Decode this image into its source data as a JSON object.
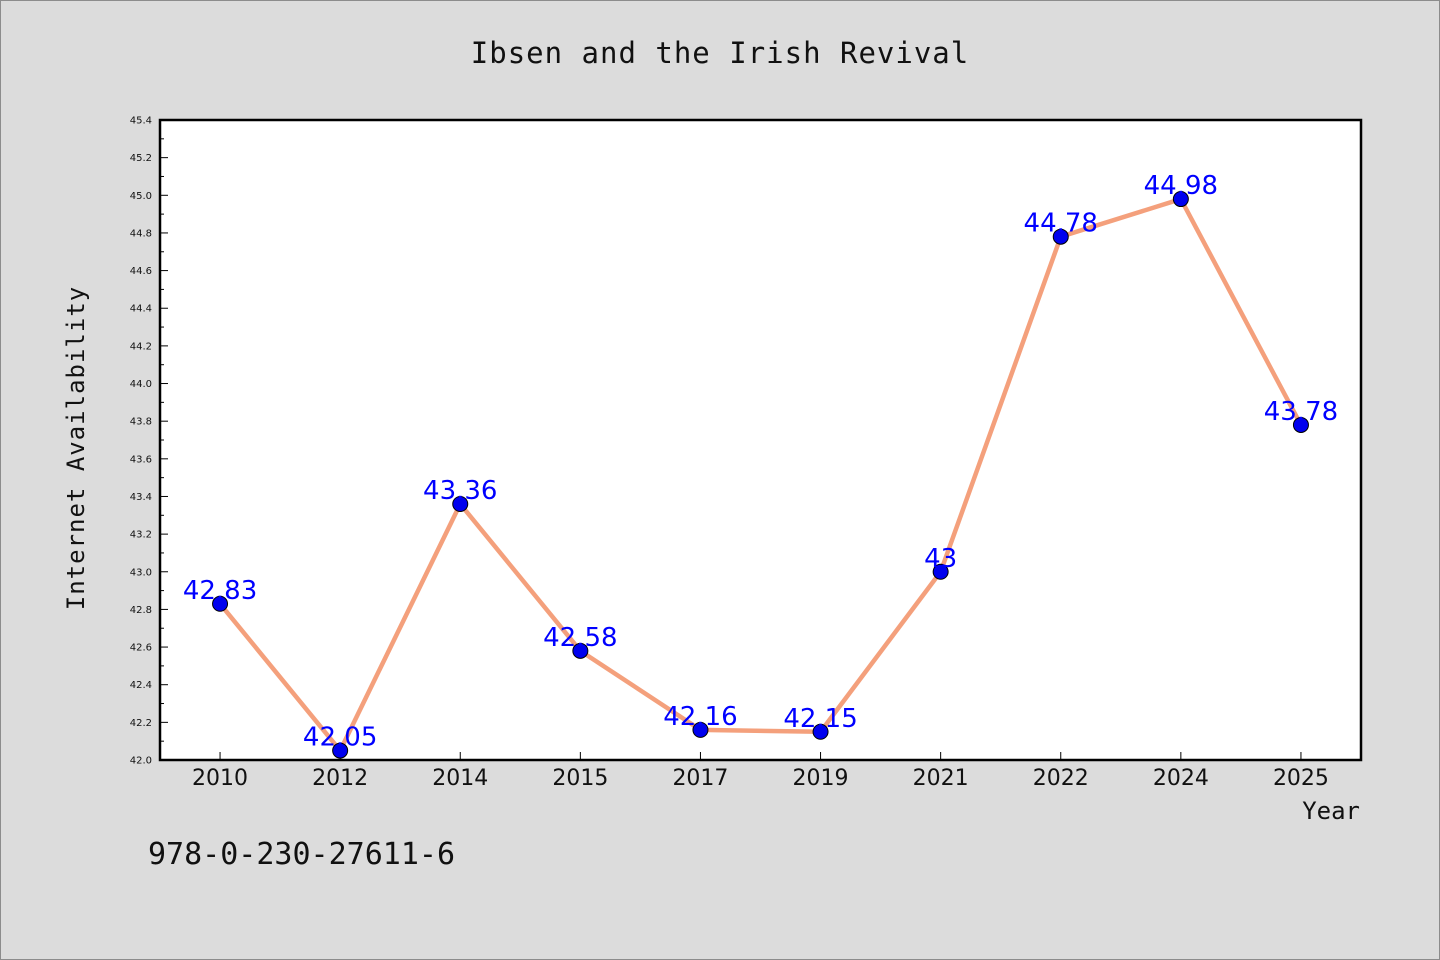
{
  "chart_data": {
    "type": "line",
    "title": "Ibsen and the Irish Revival",
    "xlabel": "Year",
    "ylabel": "Internet Availability",
    "categories": [
      "2010",
      "2012",
      "2014",
      "2015",
      "2017",
      "2019",
      "2021",
      "2022",
      "2024",
      "2025"
    ],
    "values": [
      42.83,
      42.05,
      43.36,
      42.58,
      42.16,
      42.15,
      43,
      44.78,
      44.98,
      43.78
    ],
    "data_labels": [
      "42.83",
      "42.05",
      "43.36",
      "42.58",
      "42.16",
      "42.15",
      "43",
      "44.78",
      "44.98",
      "43.78"
    ],
    "ylim": [
      42.0,
      45.4
    ],
    "yticks": [
      "42.0",
      "42.2",
      "42.4",
      "42.6",
      "42.8",
      "43.0",
      "43.2",
      "43.4",
      "43.6",
      "43.8",
      "44.0",
      "44.2",
      "44.4",
      "44.6",
      "44.8",
      "45.0",
      "45.2",
      "45.4"
    ],
    "grid": false,
    "legend": "none",
    "colors": {
      "line": "#f4a07c",
      "marker": "#0000ee",
      "label": "#0000ff",
      "background": "#dcdcdc",
      "plot_area": "#ffffff"
    }
  },
  "footer": {
    "isbn": "978-0-230-27611-6"
  }
}
